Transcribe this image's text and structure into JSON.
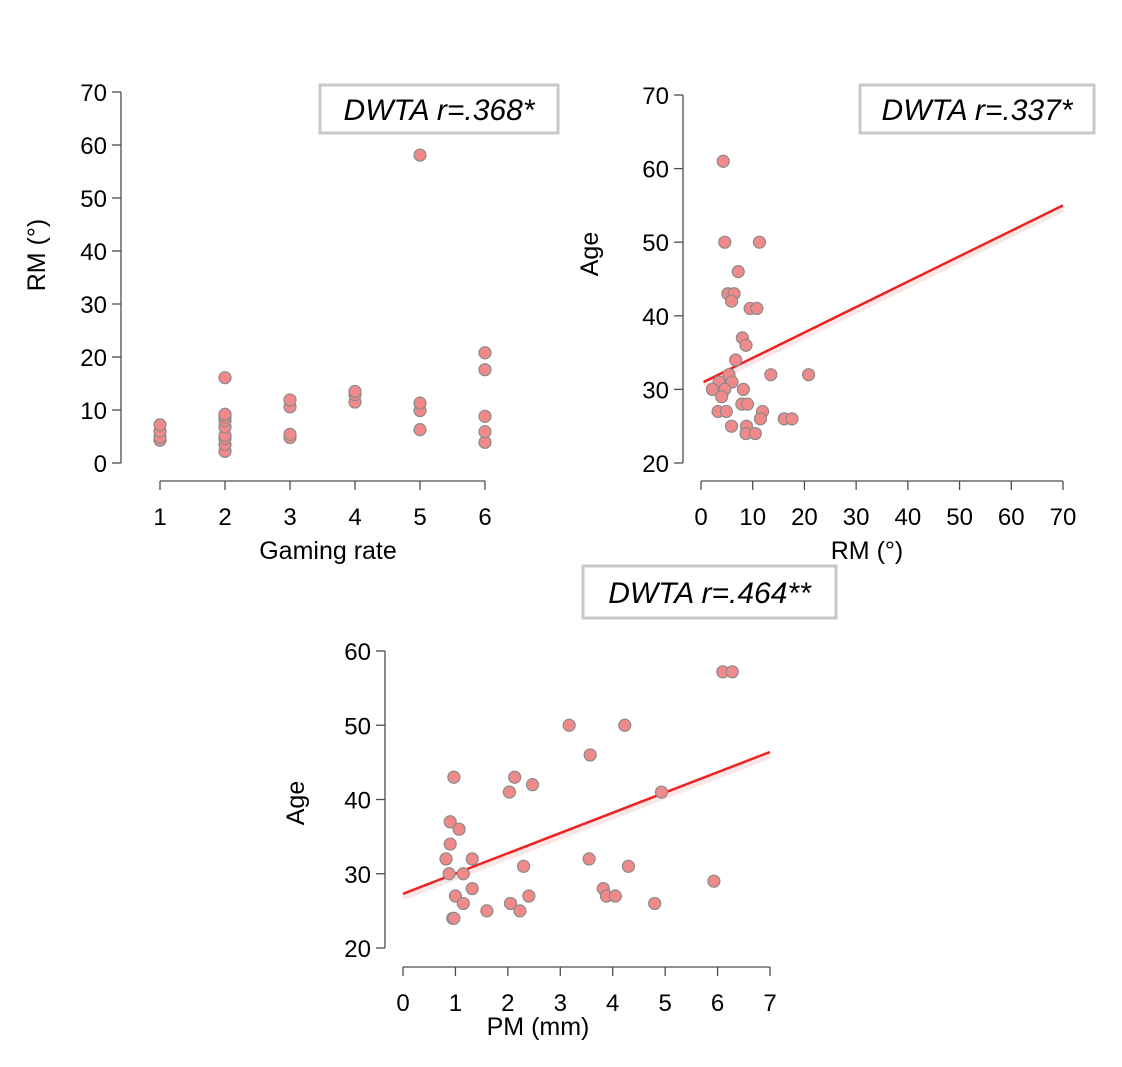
{
  "chart_data": [
    {
      "type": "scatter",
      "id": "gaming",
      "xlabel": "Gaming rate",
      "ylabel": "RM (°)",
      "xlim": [
        1,
        6
      ],
      "ylim": [
        0,
        70
      ],
      "xticks": [
        "1",
        "2",
        "3",
        "4",
        "5",
        "6"
      ],
      "yticks": [
        "0",
        "10",
        "20",
        "30",
        "40",
        "50",
        "60",
        "70"
      ],
      "annotation": "DWTA r=.368*",
      "fit_line": null,
      "points": [
        [
          1,
          4.3
        ],
        [
          1,
          4.9
        ],
        [
          1,
          6.0
        ],
        [
          1,
          7.2
        ],
        [
          2,
          2.2
        ],
        [
          2,
          3.5
        ],
        [
          2,
          4.6
        ],
        [
          2,
          5.2
        ],
        [
          2,
          6.8
        ],
        [
          2,
          8.0
        ],
        [
          2,
          8.7
        ],
        [
          2,
          9.2
        ],
        [
          2,
          16.1
        ],
        [
          3,
          4.8
        ],
        [
          3,
          5.4
        ],
        [
          3,
          10.6
        ],
        [
          3,
          11.9
        ],
        [
          4,
          11.5
        ],
        [
          4,
          12.9
        ],
        [
          4,
          13.5
        ],
        [
          5,
          6.3
        ],
        [
          5,
          9.9
        ],
        [
          5,
          11.3
        ],
        [
          5,
          58.1
        ],
        [
          6,
          3.9
        ],
        [
          6,
          5.9
        ],
        [
          6,
          8.8
        ],
        [
          6,
          17.6
        ],
        [
          6,
          20.8
        ]
      ]
    },
    {
      "type": "scatter",
      "id": "rm_age",
      "xlabel": "RM (°)",
      "ylabel": "Age",
      "xlim": [
        0,
        70
      ],
      "ylim": [
        20,
        70
      ],
      "xticks": [
        "0",
        "10",
        "20",
        "30",
        "40",
        "50",
        "60",
        "70"
      ],
      "yticks": [
        "20",
        "30",
        "40",
        "50",
        "60",
        "70"
      ],
      "annotation": "DWTA r=.337*",
      "fit_line": [
        [
          0.5,
          31
        ],
        [
          70,
          55
        ]
      ],
      "points": [
        [
          4.3,
          61
        ],
        [
          4.6,
          50
        ],
        [
          11.3,
          50
        ],
        [
          7.2,
          46
        ],
        [
          5.2,
          43
        ],
        [
          6.4,
          43
        ],
        [
          5.9,
          42
        ],
        [
          9.5,
          41
        ],
        [
          10.8,
          41
        ],
        [
          8.0,
          37
        ],
        [
          8.7,
          36
        ],
        [
          6.7,
          34
        ],
        [
          5.4,
          32
        ],
        [
          13.5,
          32
        ],
        [
          20.8,
          32
        ],
        [
          3.5,
          31
        ],
        [
          6.0,
          31
        ],
        [
          2.2,
          30
        ],
        [
          4.6,
          30
        ],
        [
          8.2,
          30
        ],
        [
          4.0,
          29
        ],
        [
          7.9,
          28
        ],
        [
          9.0,
          28
        ],
        [
          3.3,
          27
        ],
        [
          4.9,
          27
        ],
        [
          11.9,
          27
        ],
        [
          11.5,
          26
        ],
        [
          16.1,
          26
        ],
        [
          17.6,
          26
        ],
        [
          5.9,
          25
        ],
        [
          8.8,
          25
        ],
        [
          8.7,
          24
        ],
        [
          10.5,
          24
        ]
      ]
    },
    {
      "type": "scatter",
      "id": "pm_age",
      "xlabel": "PM (mm)",
      "ylabel": "Age",
      "xlim": [
        0,
        7
      ],
      "ylim": [
        20,
        60
      ],
      "xticks": [
        "0",
        "1",
        "2",
        "3",
        "4",
        "5",
        "6",
        "7"
      ],
      "yticks": [
        "20",
        "30",
        "40",
        "50",
        "60"
      ],
      "annotation": "DWTA r=.464**",
      "fit_line": [
        [
          0,
          27.3
        ],
        [
          7,
          46.4
        ]
      ],
      "points": [
        [
          6.1,
          57.2
        ],
        [
          6.28,
          57.2
        ],
        [
          3.17,
          50
        ],
        [
          4.23,
          50
        ],
        [
          3.57,
          46
        ],
        [
          0.97,
          43
        ],
        [
          2.13,
          43
        ],
        [
          2.47,
          42
        ],
        [
          2.03,
          41
        ],
        [
          4.93,
          41
        ],
        [
          0.9,
          37
        ],
        [
          1.07,
          36
        ],
        [
          0.9,
          34
        ],
        [
          0.82,
          32
        ],
        [
          1.32,
          32
        ],
        [
          3.55,
          32
        ],
        [
          2.3,
          31
        ],
        [
          4.3,
          31
        ],
        [
          0.88,
          30
        ],
        [
          1.15,
          30
        ],
        [
          5.93,
          29
        ],
        [
          1.32,
          28
        ],
        [
          3.82,
          28
        ],
        [
          1.0,
          27
        ],
        [
          2.4,
          27
        ],
        [
          3.88,
          27
        ],
        [
          4.05,
          27
        ],
        [
          1.15,
          26
        ],
        [
          2.05,
          26
        ],
        [
          4.8,
          26
        ],
        [
          1.6,
          25
        ],
        [
          2.23,
          25
        ],
        [
          0.95,
          24
        ],
        [
          0.97,
          24
        ]
      ]
    }
  ]
}
